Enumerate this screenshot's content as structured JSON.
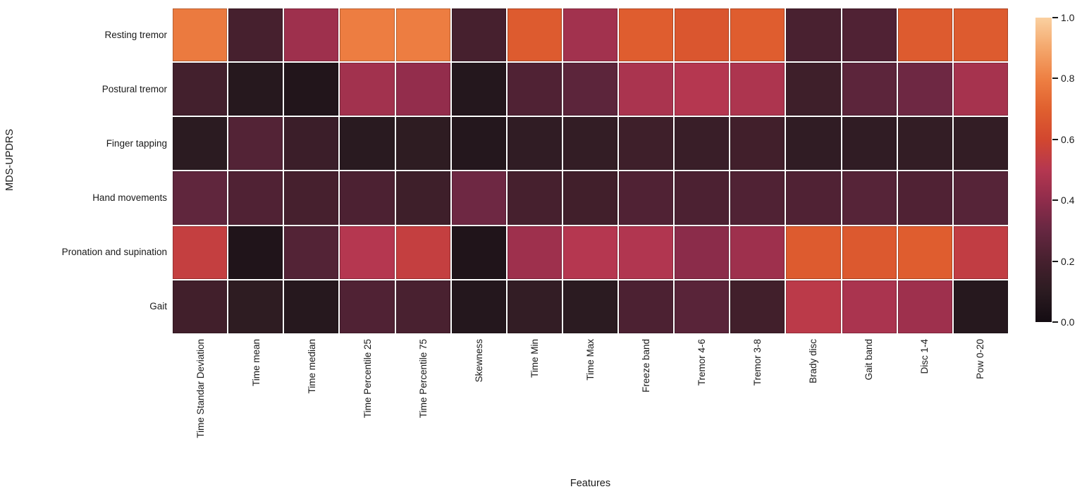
{
  "chart_data": {
    "type": "heatmap",
    "xlabel": "Features",
    "ylabel": "MDS-UPDRS",
    "rows": [
      "Resting tremor",
      "Postural tremor",
      "Finger tapping",
      "Hand movements",
      "Pronation and supination",
      "Gait"
    ],
    "columns": [
      "Time Standar Deviation",
      "Time mean",
      "Time median",
      "Time Percentile 25",
      "Time Percentile 75",
      "Skewness",
      "Time Min",
      "Time Max",
      "Freeze band",
      "Tremor 4-6",
      "Tremor 3-8",
      "Brady disc",
      "Gait band",
      "Disc 1-4",
      "Pow 0-20"
    ],
    "values": [
      [
        0.78,
        0.2,
        0.44,
        0.79,
        0.79,
        0.2,
        0.68,
        0.45,
        0.69,
        0.66,
        0.69,
        0.21,
        0.23,
        0.68,
        0.68
      ],
      [
        0.19,
        0.08,
        0.06,
        0.45,
        0.41,
        0.07,
        0.23,
        0.27,
        0.47,
        0.5,
        0.48,
        0.17,
        0.27,
        0.32,
        0.46
      ],
      [
        0.1,
        0.24,
        0.16,
        0.09,
        0.11,
        0.07,
        0.12,
        0.13,
        0.17,
        0.15,
        0.18,
        0.12,
        0.12,
        0.13,
        0.13
      ],
      [
        0.28,
        0.23,
        0.2,
        0.22,
        0.17,
        0.32,
        0.2,
        0.18,
        0.23,
        0.22,
        0.23,
        0.23,
        0.25,
        0.23,
        0.25
      ],
      [
        0.55,
        0.05,
        0.24,
        0.5,
        0.55,
        0.05,
        0.44,
        0.5,
        0.49,
        0.39,
        0.44,
        0.68,
        0.67,
        0.69,
        0.54
      ],
      [
        0.18,
        0.11,
        0.08,
        0.23,
        0.21,
        0.07,
        0.13,
        0.1,
        0.22,
        0.26,
        0.18,
        0.52,
        0.47,
        0.44,
        0.08
      ]
    ],
    "vmin": 0.0,
    "vmax": 1.0,
    "grid_line_color": "#ffffff",
    "colorbar": {
      "tick_labels": [
        "1.0",
        "0.8",
        "0.6",
        "0.4",
        "0.2",
        "0.0"
      ],
      "tick_values": [
        1.0,
        0.8,
        0.6,
        0.4,
        0.2,
        0.0
      ]
    },
    "colormap_stops": [
      "#140c12",
      "#2b1b21",
      "#46202e",
      "#662741",
      "#8f2c4b",
      "#b53750",
      "#d2472f",
      "#e0602f",
      "#ee8043",
      "#f4a76c",
      "#fad0a0"
    ]
  }
}
